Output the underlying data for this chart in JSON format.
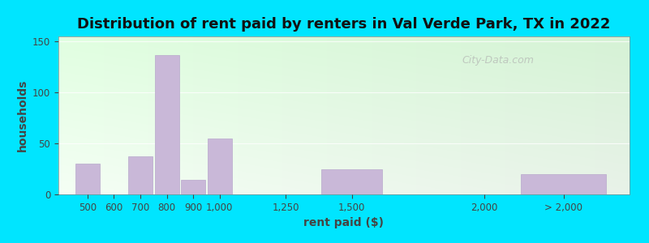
{
  "title": "Distribution of rent paid by renters in Val Verde Park, TX in 2022",
  "xlabel": "rent paid ($)",
  "ylabel": "households",
  "bar_centers": [
    500,
    600,
    700,
    800,
    900,
    1000,
    1250,
    1500,
    2000,
    2300
  ],
  "bar_widths": [
    100,
    100,
    100,
    100,
    100,
    100,
    250,
    250,
    500,
    350
  ],
  "bar_heights": [
    30,
    0,
    37,
    137,
    14,
    55,
    0,
    25,
    0,
    20
  ],
  "bar_color": "#c9b8d8",
  "bar_edge_color": "#b8a8cc",
  "xtick_positions": [
    500,
    600,
    700,
    800,
    900,
    1000,
    1250,
    1500,
    2000,
    2300
  ],
  "xtick_labels": [
    "500",
    "600",
    "700",
    "800",
    "900",
    "1,000",
    "1,250",
    "1,500",
    "2,000",
    "> 2,000"
  ],
  "xlim": [
    390,
    2550
  ],
  "ylim": [
    0,
    155
  ],
  "yticks": [
    0,
    50,
    100,
    150
  ],
  "background_outer": "#00e5ff",
  "background_inner": "#edf7ed",
  "title_fontsize": 13,
  "axis_label_fontsize": 10,
  "tick_fontsize": 8.5,
  "watermark_text": "City-Data.com",
  "figsize": [
    8.0,
    3.0
  ],
  "dpi": 100
}
